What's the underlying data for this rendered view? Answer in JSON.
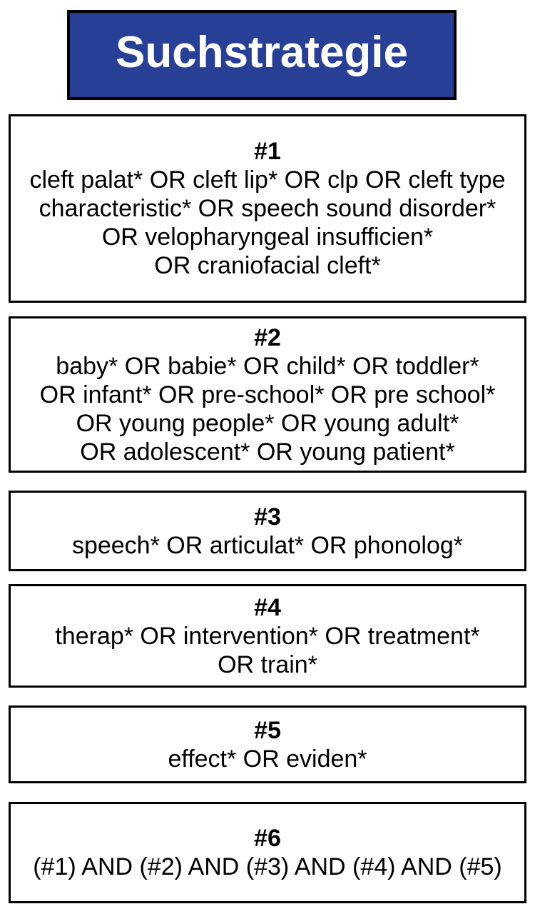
{
  "title": "Suchstrategie",
  "colors": {
    "header_bg": "#283f96",
    "header_text": "#ffffff",
    "border": "#000000",
    "body_text": "#000000"
  },
  "boxes": [
    {
      "id": "#1",
      "lines": [
        "cleft palat* OR cleft lip* OR clp OR cleft type",
        "characteristic* OR speech sound disorder*",
        "OR velopharyngeal insufficien*",
        "OR craniofacial cleft*"
      ]
    },
    {
      "id": "#2",
      "lines": [
        "baby* OR babie* OR child* OR toddler*",
        "OR infant* OR pre-school* OR pre school*",
        "OR young people* OR young adult*",
        "OR adolescent* OR young patient*"
      ]
    },
    {
      "id": "#3",
      "lines": [
        "speech* OR articulat* OR phonolog*"
      ]
    },
    {
      "id": "#4",
      "lines": [
        "therap* OR intervention* OR treatment*",
        "OR train*"
      ]
    },
    {
      "id": "#5",
      "lines": [
        "effect* OR eviden*"
      ]
    },
    {
      "id": "#6",
      "lines": [
        "(#1) AND (#2) AND (#3) AND (#4) AND (#5)"
      ]
    }
  ]
}
